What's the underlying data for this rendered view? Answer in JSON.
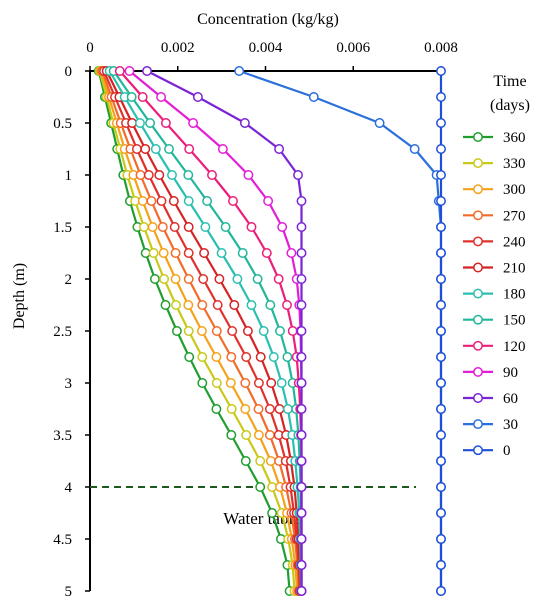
{
  "chart_data": {
    "type": "line",
    "xlabel": "Concentration (kg/kg)",
    "ylabel": "Depth (m)",
    "xlim": [
      0,
      0.008
    ],
    "ylim": [
      0,
      5
    ],
    "x_axis_position": "top",
    "y_axis_inverted": true,
    "x_ticks": [
      "0",
      "0.002",
      "0.004",
      "0.006",
      "0.008"
    ],
    "x_tick_values": [
      0,
      0.002,
      0.004,
      0.006,
      0.008
    ],
    "y_ticks": [
      "0",
      "0.5",
      "1",
      "1.5",
      "2",
      "2.5",
      "3",
      "3.5",
      "4",
      "4.5",
      "5"
    ],
    "y_tick_values": [
      0,
      0.5,
      1,
      1.5,
      2,
      2.5,
      3,
      3.5,
      4,
      4.5,
      5
    ],
    "grid": false,
    "markers": "open-circle",
    "legend": {
      "title_line1": "Time",
      "title_line2": "(days)",
      "placement": "right"
    },
    "depths": [
      0,
      0.25,
      0.5,
      0.75,
      1,
      1.25,
      1.5,
      1.75,
      2,
      2.25,
      2.5,
      2.75,
      3,
      3.25,
      3.5,
      3.75,
      4,
      4.25,
      4.5,
      4.75,
      5
    ],
    "series": [
      {
        "name": "360",
        "color": "#1f9e2f",
        "values": [
          0.0002,
          0.00034,
          0.00048,
          0.00062,
          0.00076,
          0.00091,
          0.00108,
          0.00127,
          0.00148,
          0.00172,
          0.00198,
          0.00226,
          0.00256,
          0.00288,
          0.00322,
          0.00355,
          0.00388,
          0.00415,
          0.00435,
          0.0045,
          0.00455
        ]
      },
      {
        "name": "330",
        "color": "#c9c91a",
        "values": [
          0.00022,
          0.00038,
          0.00053,
          0.00069,
          0.00085,
          0.00103,
          0.00123,
          0.00145,
          0.00169,
          0.00196,
          0.00225,
          0.00256,
          0.00289,
          0.00323,
          0.00356,
          0.00388,
          0.00415,
          0.00437,
          0.00452,
          0.00462,
          0.00466
        ]
      },
      {
        "name": "300",
        "color": "#f5a21b",
        "values": [
          0.00025,
          0.00043,
          0.00061,
          0.00079,
          0.00099,
          0.0012,
          0.00143,
          0.00168,
          0.00195,
          0.00224,
          0.00255,
          0.00288,
          0.00321,
          0.00354,
          0.00385,
          0.00412,
          0.00433,
          0.00449,
          0.0046,
          0.00468,
          0.00472
        ]
      },
      {
        "name": "270",
        "color": "#f26b2a",
        "values": [
          0.00028,
          0.00049,
          0.0007,
          0.00092,
          0.00115,
          0.0014,
          0.00166,
          0.00195,
          0.00225,
          0.00256,
          0.00289,
          0.00322,
          0.00354,
          0.00384,
          0.0041,
          0.00431,
          0.00447,
          0.00459,
          0.00467,
          0.00473,
          0.00476
        ]
      },
      {
        "name": "240",
        "color": "#e0302b",
        "values": [
          0.00032,
          0.00057,
          0.00082,
          0.00107,
          0.00134,
          0.00163,
          0.00193,
          0.00225,
          0.00258,
          0.00291,
          0.00324,
          0.00356,
          0.00385,
          0.0041,
          0.0043,
          0.00446,
          0.00457,
          0.00465,
          0.00471,
          0.00476,
          0.00478
        ]
      },
      {
        "name": "210",
        "color": "#d62222",
        "values": [
          0.00038,
          0.00067,
          0.00096,
          0.00126,
          0.00158,
          0.00191,
          0.00225,
          0.0026,
          0.00295,
          0.00329,
          0.0036,
          0.00389,
          0.00413,
          0.00432,
          0.00447,
          0.00458,
          0.00466,
          0.00471,
          0.00475,
          0.00478,
          0.0048
        ]
      },
      {
        "name": "180",
        "color": "#2bbfb0",
        "values": [
          0.00045,
          0.00079,
          0.00114,
          0.0015,
          0.00187,
          0.00225,
          0.00263,
          0.003,
          0.00336,
          0.00368,
          0.00396,
          0.00419,
          0.00437,
          0.00451,
          0.00461,
          0.00468,
          0.00473,
          0.00477,
          0.00479,
          0.0048,
          0.00481
        ]
      },
      {
        "name": "150",
        "color": "#21b79a",
        "values": [
          0.00054,
          0.00095,
          0.00137,
          0.0018,
          0.00224,
          0.00267,
          0.00309,
          0.00348,
          0.00382,
          0.00411,
          0.00433,
          0.0045,
          0.00462,
          0.0047,
          0.00475,
          0.00478,
          0.0048,
          0.00481,
          0.00482,
          0.00482,
          0.00482
        ]
      },
      {
        "name": "120",
        "color": "#ea1f7a",
        "values": [
          0.00068,
          0.0012,
          0.00173,
          0.00226,
          0.00278,
          0.00326,
          0.00368,
          0.00403,
          0.0043,
          0.00449,
          0.00462,
          0.00471,
          0.00476,
          0.00479,
          0.00481,
          0.00482,
          0.00482,
          0.00482,
          0.00482,
          0.00482,
          0.00482
        ]
      },
      {
        "name": "90",
        "color": "#e41ed6",
        "values": [
          0.0009,
          0.00162,
          0.00235,
          0.00303,
          0.00361,
          0.00406,
          0.00438,
          0.00459,
          0.00471,
          0.00477,
          0.0048,
          0.00481,
          0.00482,
          0.00482,
          0.00482,
          0.00482,
          0.00482,
          0.00482,
          0.00482,
          0.00482,
          0.00482
        ]
      },
      {
        "name": "60",
        "color": "#7a24d6",
        "values": [
          0.0013,
          0.00246,
          0.00353,
          0.00431,
          0.00474,
          0.00482,
          0.00482,
          0.00482,
          0.00482,
          0.00482,
          0.00482,
          0.00482,
          0.00482,
          0.00482,
          0.00482,
          0.00482,
          0.00482,
          0.00482,
          0.00482,
          0.00482,
          0.00482
        ]
      },
      {
        "name": "30",
        "color": "#2a6fdc",
        "values": [
          0.0034,
          0.0051,
          0.0066,
          0.0074,
          0.0079,
          0.00795,
          0.008,
          0.008,
          0.008,
          0.008,
          0.008,
          0.008,
          0.008,
          0.008,
          0.008,
          0.008,
          0.008,
          0.008,
          0.008,
          0.008,
          0.008
        ]
      },
      {
        "name": "0",
        "color": "#1f4fd8",
        "values": [
          0.008,
          0.008,
          0.008,
          0.008,
          0.008,
          0.008,
          0.008,
          0.008,
          0.008,
          0.008,
          0.008,
          0.008,
          0.008,
          0.008,
          0.008,
          0.008,
          0.008,
          0.008,
          0.008,
          0.008,
          0.008
        ]
      }
    ],
    "annotations": [
      {
        "text": "Water table",
        "depth": 4,
        "style": "dashed",
        "color": "#1e5a1e"
      }
    ]
  }
}
